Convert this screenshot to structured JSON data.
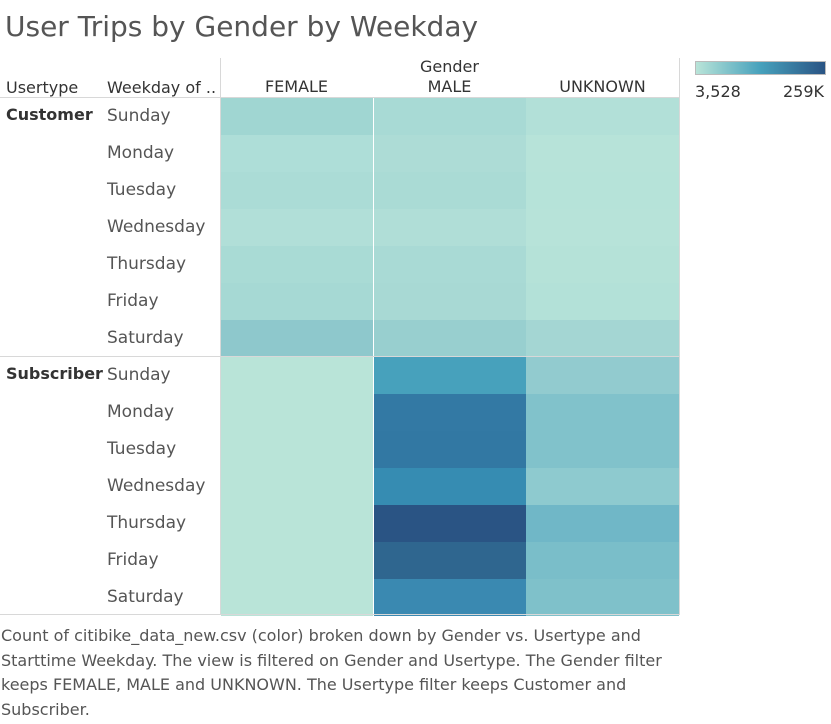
{
  "title": "User Trips by Gender by Weekday",
  "headers": {
    "usertype": "Usertype",
    "weekday": "Weekday of ..",
    "gender": "Gender"
  },
  "legend": {
    "min_label": "3,528",
    "max_label": "259K",
    "color_low": "#b9e4d8",
    "color_high": "#2a5484"
  },
  "caption": "Count of citibike_data_new.csv (color) broken down by Gender vs. Usertype and Starttime Weekday. The view is filtered on Gender and Usertype. The Gender filter keeps FEMALE, MALE and UNKNOWN. The Usertype filter keeps Customer and Subscriber.",
  "chart_data": {
    "type": "heatmap",
    "columns": [
      "FEMALE",
      "MALE",
      "UNKNOWN"
    ],
    "row_groups": [
      {
        "name": "Customer",
        "rows": [
          "Sunday",
          "Monday",
          "Tuesday",
          "Wednesday",
          "Thursday",
          "Friday",
          "Saturday"
        ],
        "colors": [
          [
            "#a0d6d2",
            "#a8dad5",
            "#b2e0d8"
          ],
          [
            "#aeded8",
            "#addcd6",
            "#b7e3d9"
          ],
          [
            "#abdcd6",
            "#aadbd5",
            "#b6e3d9"
          ],
          [
            "#b1dfd8",
            "#b0ded7",
            "#b7e3d9"
          ],
          [
            "#a9dbd5",
            "#a9dad5",
            "#b5e2d8"
          ],
          [
            "#a6d9d4",
            "#a8d9d4",
            "#b3e1d8"
          ],
          [
            "#8ec8cc",
            "#98cfcf",
            "#a4d6d3"
          ]
        ]
      },
      {
        "name": "Subscriber",
        "rows": [
          "Sunday",
          "Monday",
          "Tuesday",
          "Wednesday",
          "Thursday",
          "Friday",
          "Saturday"
        ],
        "colors": [
          [
            "#b9e4d8",
            "#47a1bc",
            "#92cbcf"
          ],
          [
            "#b9e4d8",
            "#3379a4",
            "#81c2cb"
          ],
          [
            "#b9e4d8",
            "#3278a3",
            "#81c2cb"
          ],
          [
            "#b9e4d8",
            "#368cb2",
            "#8ecacf"
          ],
          [
            "#b9e4d8",
            "#2a5484",
            "#70b7c7"
          ],
          [
            "#b9e4d8",
            "#2f668f",
            "#7abec9"
          ],
          [
            "#b9e4d8",
            "#3a89b1",
            "#7fc1ca"
          ]
        ]
      }
    ]
  }
}
